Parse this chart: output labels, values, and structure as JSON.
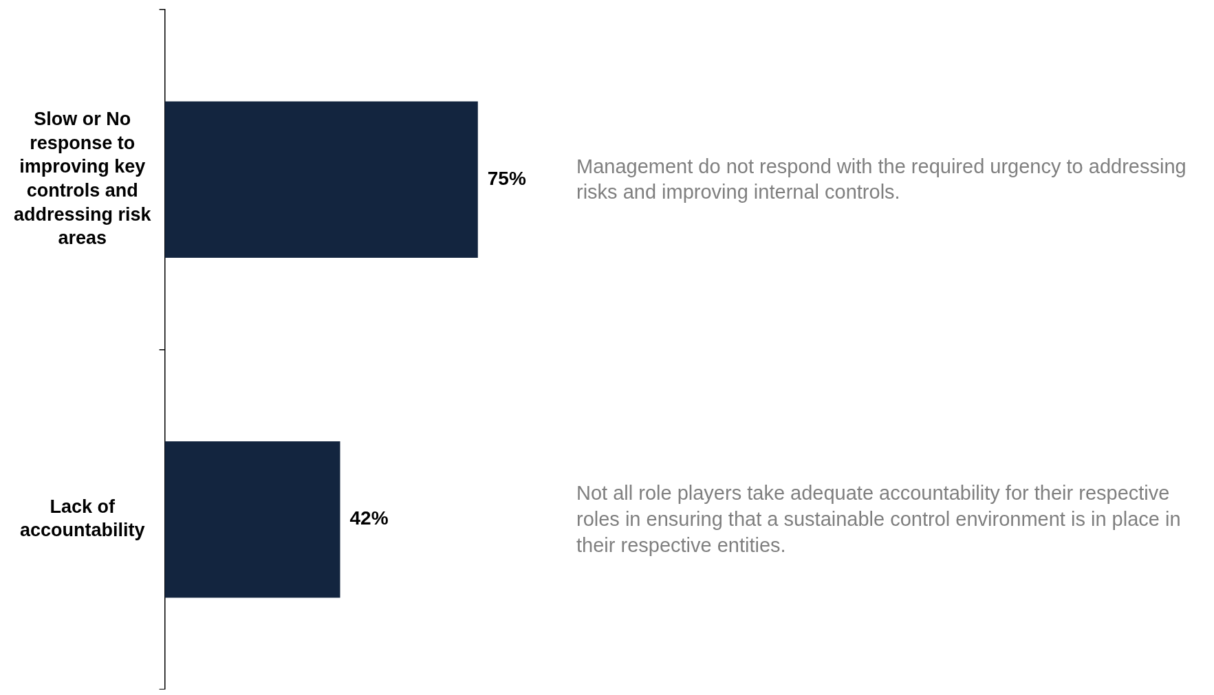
{
  "chart_data": {
    "type": "bar",
    "orientation": "horizontal",
    "categories": [
      "Slow or No response to improving key controls and addressing risk areas",
      "Lack of accountability"
    ],
    "values": [
      75,
      42
    ],
    "value_labels": [
      "75%",
      "42%"
    ],
    "color": "#13253f",
    "legend": false,
    "annotations": [
      "Management do not respond with the required urgency to addressing risks and improving internal controls.",
      "Not all role players take adequate accountability for their respective roles in ensuring that a sustainable control environment is in place in their respective entities."
    ]
  }
}
